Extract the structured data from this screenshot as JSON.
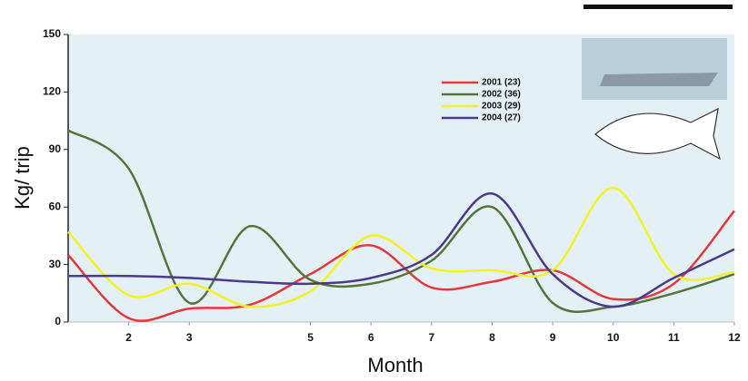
{
  "chart_data": {
    "type": "line",
    "ylabel": "Kg/ trip",
    "xlabel": "Month",
    "x": [
      1,
      2,
      3,
      4,
      5,
      6,
      7,
      8,
      9,
      10,
      11,
      12
    ],
    "xlim": [
      1,
      12
    ],
    "xticks": [
      2,
      3,
      5,
      6,
      7,
      8,
      9,
      10,
      11,
      12
    ],
    "ylim": [
      0,
      150
    ],
    "yticks": [
      0,
      30,
      60,
      90,
      120,
      150
    ],
    "series": [
      {
        "name": "2001 (23)",
        "color": "#e5383b",
        "values": [
          35,
          2,
          7,
          9,
          25,
          40,
          18,
          21,
          27,
          12,
          20,
          58
        ]
      },
      {
        "name": "2002 (36)",
        "color": "#56753a",
        "values": [
          100,
          80,
          10,
          50,
          22,
          20,
          32,
          60,
          10,
          8,
          15,
          25
        ]
      },
      {
        "name": "2003 (29)",
        "color": "#f2f226",
        "values": [
          47,
          14,
          20,
          8,
          16,
          45,
          28,
          27,
          27,
          70,
          25,
          26
        ]
      },
      {
        "name": "2004 (27)",
        "color": "#4b3b8c",
        "values": [
          24,
          24,
          23,
          21,
          20,
          23,
          35,
          67,
          25,
          8,
          23,
          38
        ]
      }
    ]
  }
}
